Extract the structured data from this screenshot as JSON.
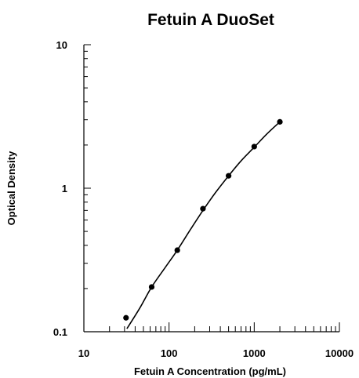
{
  "chart_data": {
    "type": "scatter",
    "title": "Fetuin A DuoSet",
    "xlabel": "Fetuin A Concentration (pg/mL)",
    "ylabel": "Optical Density",
    "x_scale": "log",
    "y_scale": "log",
    "xlim": [
      10,
      10000
    ],
    "ylim": [
      0.1,
      10
    ],
    "x_ticks": [
      "10",
      "100",
      "1000",
      "10000"
    ],
    "y_ticks": [
      "0.1",
      "1",
      "10"
    ],
    "grid": false,
    "legend": "none",
    "series": [
      {
        "points": [
          {
            "x": 31.25,
            "y": 0.125
          },
          {
            "x": 62.5,
            "y": 0.205
          },
          {
            "x": 125,
            "y": 0.37
          },
          {
            "x": 250,
            "y": 0.72
          },
          {
            "x": 500,
            "y": 1.22
          },
          {
            "x": 1000,
            "y": 1.95
          },
          {
            "x": 2000,
            "y": 2.9
          }
        ],
        "fit_curve": [
          {
            "x": 32,
            "y": 0.105
          },
          {
            "x": 45,
            "y": 0.145
          },
          {
            "x": 62.5,
            "y": 0.205
          },
          {
            "x": 90,
            "y": 0.28
          },
          {
            "x": 125,
            "y": 0.37
          },
          {
            "x": 180,
            "y": 0.52
          },
          {
            "x": 250,
            "y": 0.7
          },
          {
            "x": 350,
            "y": 0.93
          },
          {
            "x": 500,
            "y": 1.22
          },
          {
            "x": 700,
            "y": 1.55
          },
          {
            "x": 1000,
            "y": 1.93
          },
          {
            "x": 1400,
            "y": 2.38
          },
          {
            "x": 2000,
            "y": 2.9
          }
        ]
      }
    ]
  },
  "colors": {
    "marker": "#000000",
    "line": "#000000",
    "background": "#ffffff"
  }
}
